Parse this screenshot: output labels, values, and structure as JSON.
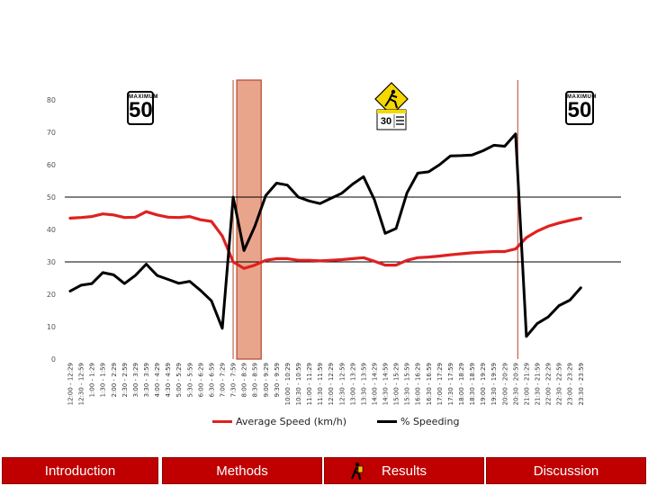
{
  "chart_data": {
    "type": "line",
    "categories": [
      "12:00 - 12:29",
      "12:30 - 12:59",
      "1:00 - 1:29",
      "1:30 - 1:59",
      "2:00 - 2:29",
      "2:30 - 2:59",
      "3:00 - 3:29",
      "3:30 - 3:59",
      "4:00 - 4:29",
      "4:30 - 4:59",
      "5:00 - 5:29",
      "5:30 - 5:59",
      "6:00 - 6:29",
      "6:30 - 6:59",
      "7:00 - 7:29",
      "7:30 - 7:59",
      "8:00 - 8:29",
      "8:30 - 8:59",
      "9:00 - 9:29",
      "9:30 - 9:59",
      "10:00 - 10:29",
      "10:30 - 10:59",
      "11:00 - 11:29",
      "11:30 - 11:59",
      "12:00 - 12:29",
      "12:30 - 12:59",
      "13:00 - 13:29",
      "13:30 - 13:59",
      "14:00 - 14:29",
      "14:30 - 14:59",
      "15:00 - 15:29",
      "15:30 - 15:59",
      "16:00 - 16:29",
      "16:30 - 16:59",
      "17:00 - 17:29",
      "17:30 - 17:59",
      "18:00 - 18:29",
      "18:30 - 18:59",
      "19:00 - 19:29",
      "19:30 - 19:59",
      "20:00 - 20:29",
      "20:30 - 20:59",
      "21:00 - 21:29",
      "21:30 - 21:59",
      "22:00 - 22:29",
      "22:30 - 22:59",
      "23:00 - 23:29",
      "23:30 - 23:59"
    ],
    "series": [
      {
        "name": "Average Speed (km/h)",
        "color": "#e02020",
        "values": [
          43.5,
          43.7,
          44.0,
          44.8,
          44.5,
          43.7,
          43.8,
          45.5,
          44.5,
          43.8,
          43.7,
          44.0,
          43.0,
          42.5,
          38.0,
          30.0,
          28.0,
          29.0,
          30.5,
          31.0,
          31.0,
          30.5,
          30.5,
          30.3,
          30.5,
          30.7,
          31.0,
          31.3,
          30.2,
          29.0,
          29.0,
          30.5,
          31.3,
          31.5,
          31.8,
          32.2,
          32.5,
          32.8,
          33.0,
          33.2,
          33.2,
          34.0,
          37.5,
          39.5,
          41.0,
          42.0,
          42.8,
          43.5
        ]
      },
      {
        "name": "% Speeding",
        "color": "#000000",
        "values": [
          21.0,
          22.8,
          23.3,
          26.7,
          26.0,
          23.3,
          25.8,
          29.3,
          25.8,
          24.6,
          23.4,
          24.0,
          21.2,
          18.0,
          9.5,
          50.0,
          33.5,
          41.0,
          50.5,
          54.3,
          53.7,
          50.0,
          48.8,
          48.0,
          49.6,
          51.2,
          54.0,
          56.3,
          49.2,
          38.8,
          40.3,
          51.3,
          57.4,
          57.8,
          60.0,
          62.7,
          62.8,
          63.0,
          64.3,
          66.0,
          65.7,
          69.5,
          7.0,
          11.0,
          13.0,
          16.5,
          18.2,
          22.0
        ]
      }
    ],
    "ylim": [
      0,
      80
    ],
    "yticks": [
      0,
      10,
      20,
      30,
      40,
      50,
      60,
      70,
      80
    ],
    "reference_lines": [
      30,
      50
    ],
    "highlight_band": [
      "8:00 - 8:29",
      "8:30 - 8:59"
    ],
    "marker_lines": [
      "7:30 - 7:59",
      "20:30 - 20:59"
    ],
    "grid": false,
    "legend_position": "bottom"
  },
  "signs": {
    "left_speed": {
      "top": "MAXIMUM",
      "number": "50"
    },
    "right_speed": {
      "top": "MAXIMUM",
      "number": "50"
    }
  },
  "nav": {
    "introduction": "Introduction",
    "methods": "Methods",
    "results": "Results",
    "discussion": "Discussion"
  }
}
